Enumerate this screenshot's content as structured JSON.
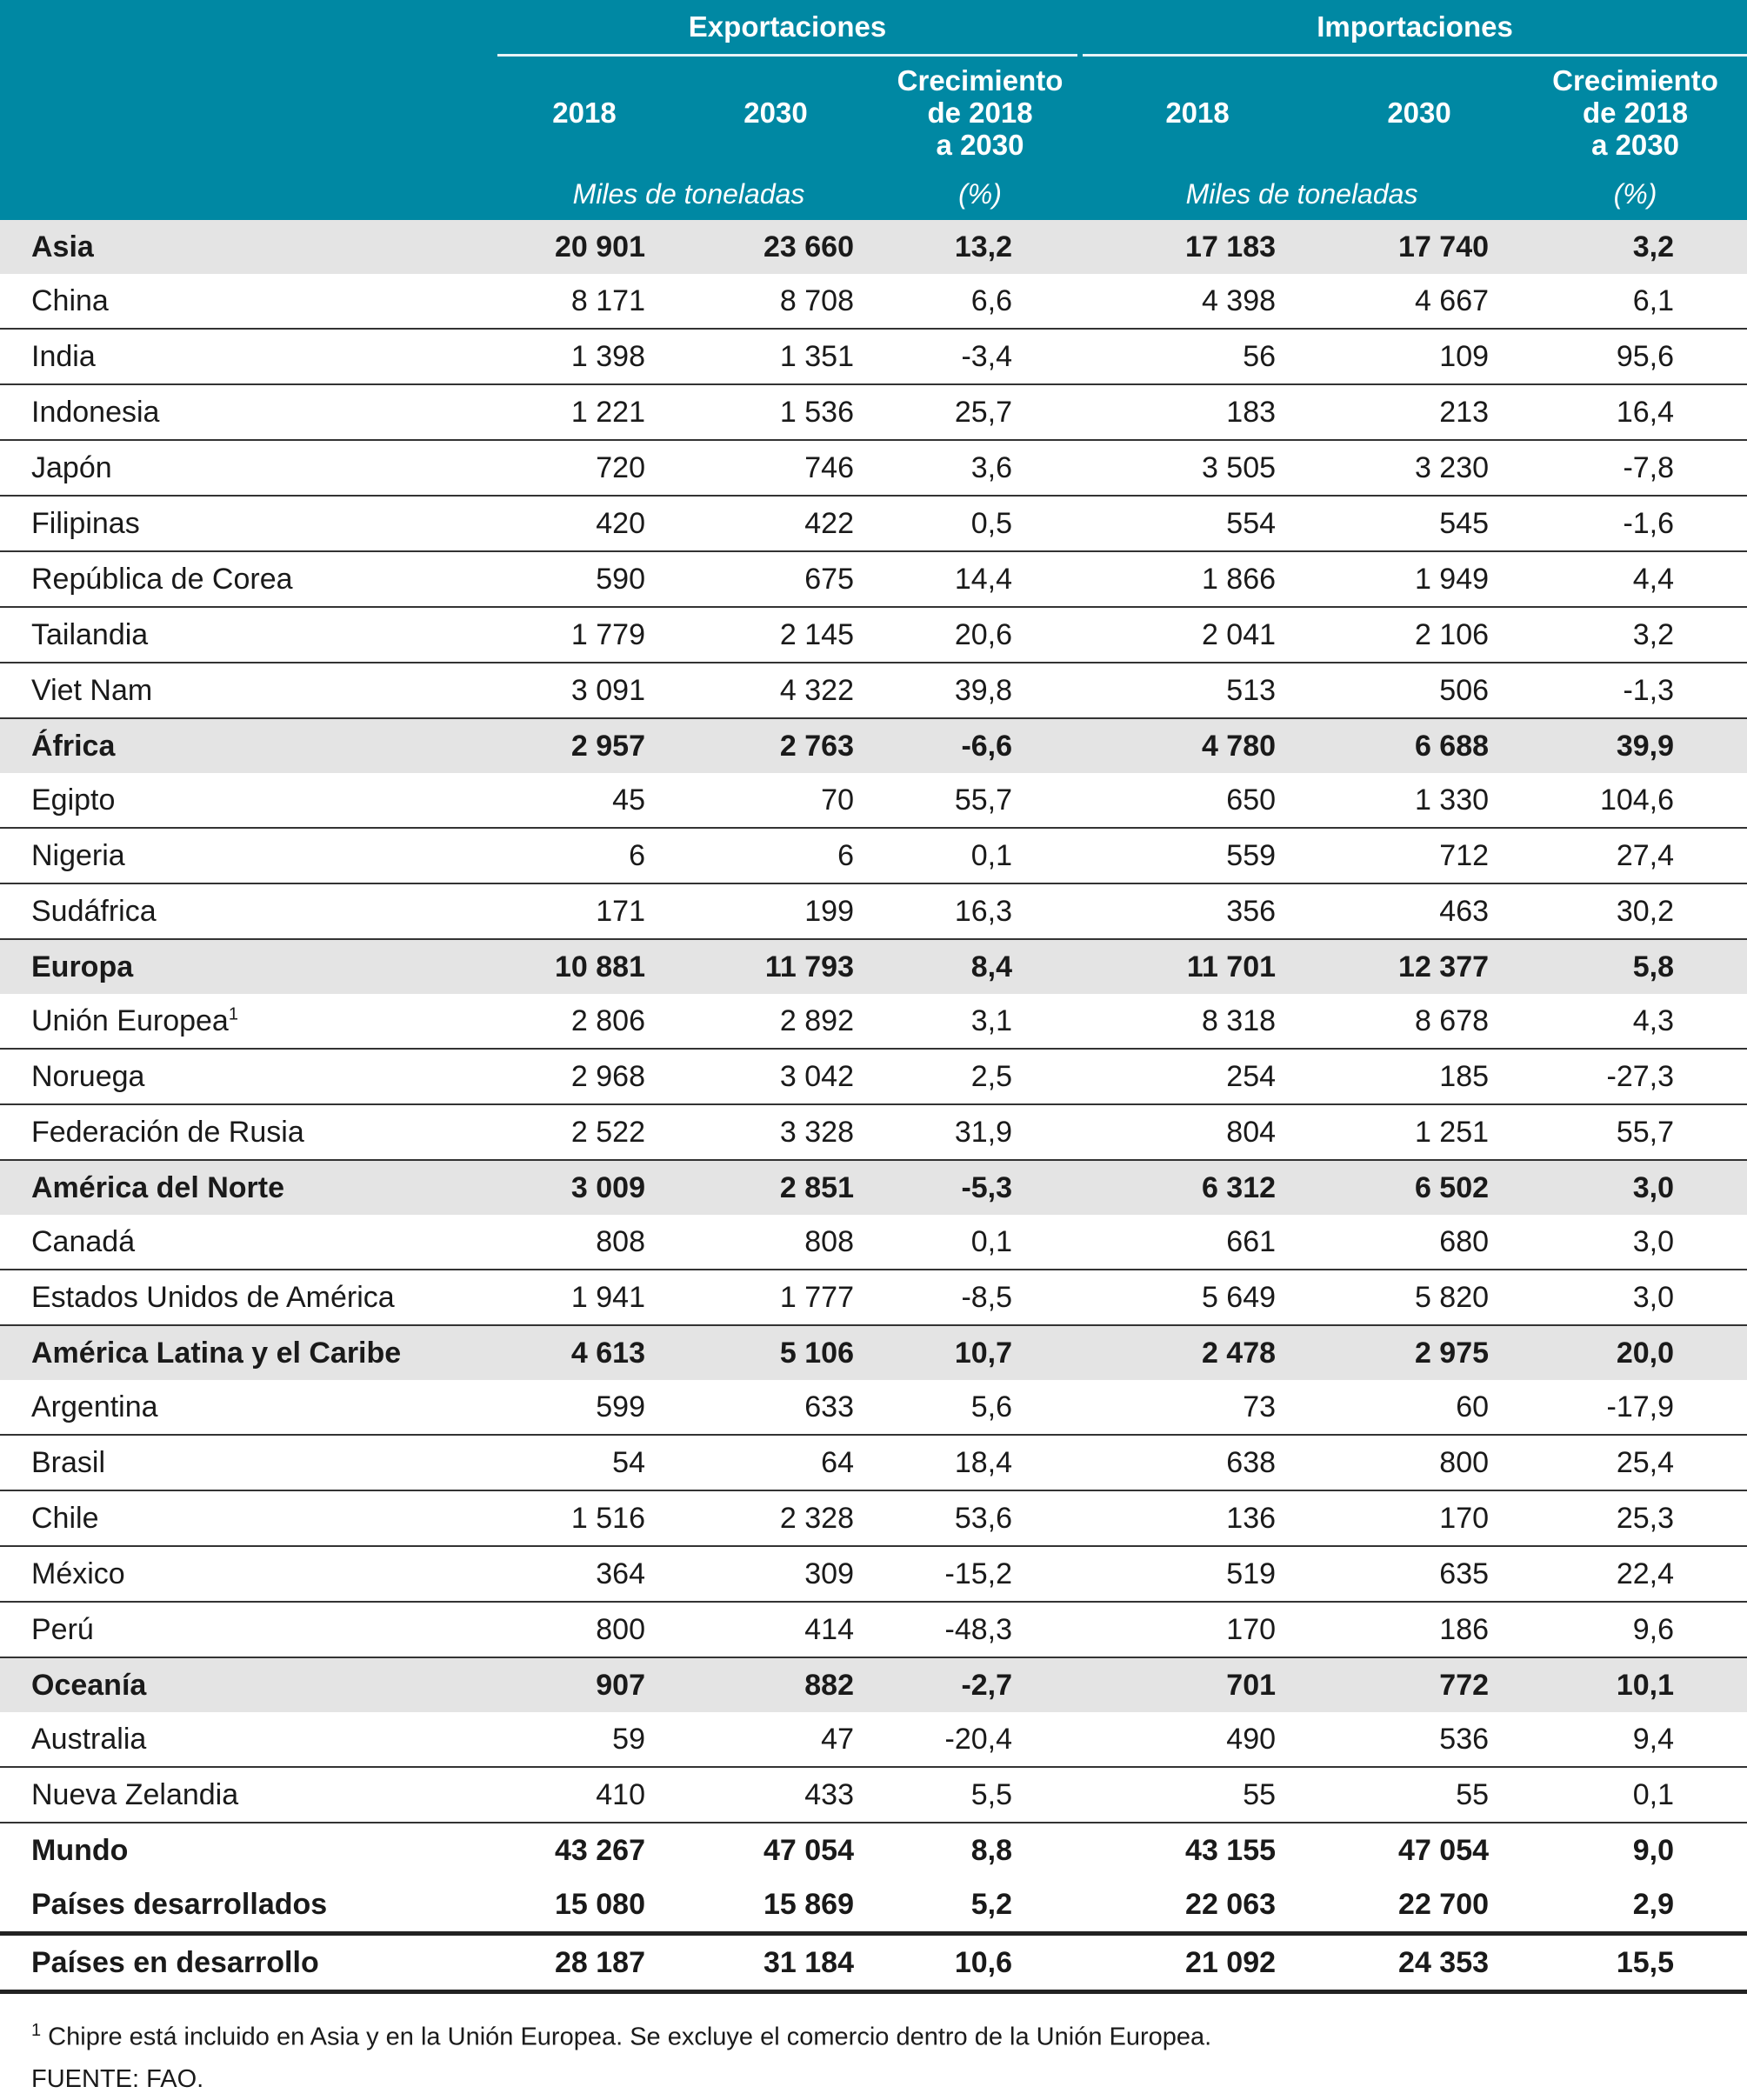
{
  "header": {
    "exports": "Exportaciones",
    "imports": "Importaciones",
    "y2018": "2018",
    "y2030": "2030",
    "growth_l1": "Crecimiento",
    "growth_l2": "de 2018",
    "growth_l3": "a 2030",
    "unit_tonnes": "Miles de toneladas",
    "unit_pct": "(%)"
  },
  "rows": [
    {
      "name": "Asia",
      "region": true,
      "v": [
        "20 901",
        "23 660",
        "13,2",
        "17 183",
        "17 740",
        "3,2"
      ]
    },
    {
      "name": "China",
      "v": [
        "8 171",
        "8 708",
        "6,6",
        "4 398",
        "4 667",
        "6,1"
      ]
    },
    {
      "name": "India",
      "v": [
        "1 398",
        "1 351",
        "-3,4",
        "56",
        "109",
        "95,6"
      ]
    },
    {
      "name": "Indonesia",
      "v": [
        "1 221",
        "1 536",
        "25,7",
        "183",
        "213",
        "16,4"
      ]
    },
    {
      "name": "Japón",
      "v": [
        "720",
        "746",
        "3,6",
        "3 505",
        "3 230",
        "-7,8"
      ]
    },
    {
      "name": "Filipinas",
      "v": [
        "420",
        "422",
        "0,5",
        "554",
        "545",
        "-1,6"
      ]
    },
    {
      "name": "República de Corea",
      "v": [
        "590",
        "675",
        "14,4",
        "1 866",
        "1 949",
        "4,4"
      ]
    },
    {
      "name": "Tailandia",
      "v": [
        "1 779",
        "2 145",
        "20,6",
        "2 041",
        "2 106",
        "3,2"
      ]
    },
    {
      "name": "Viet Nam",
      "v": [
        "3 091",
        "4 322",
        "39,8",
        "513",
        "506",
        "-1,3"
      ]
    },
    {
      "name": "África",
      "region": true,
      "v": [
        "2 957",
        "2 763",
        "-6,6",
        "4 780",
        "6 688",
        "39,9"
      ]
    },
    {
      "name": "Egipto",
      "v": [
        "45",
        "70",
        "55,7",
        "650",
        "1 330",
        "104,6"
      ]
    },
    {
      "name": "Nigeria",
      "v": [
        "6",
        "6",
        "0,1",
        "559",
        "712",
        "27,4"
      ]
    },
    {
      "name": "Sudáfrica",
      "v": [
        "171",
        "199",
        "16,3",
        "356",
        "463",
        "30,2"
      ]
    },
    {
      "name": "Europa",
      "region": true,
      "v": [
        "10 881",
        "11 793",
        "8,4",
        "11 701",
        "12 377",
        "5,8"
      ]
    },
    {
      "name": "Unión Europea",
      "sup": "1",
      "v": [
        "2 806",
        "2 892",
        "3,1",
        "8 318",
        "8 678",
        "4,3"
      ]
    },
    {
      "name": "Noruega",
      "v": [
        "2 968",
        "3 042",
        "2,5",
        "254",
        "185",
        "-27,3"
      ]
    },
    {
      "name": "Federación de Rusia",
      "v": [
        "2 522",
        "3 328",
        "31,9",
        "804",
        "1 251",
        "55,7"
      ]
    },
    {
      "name": "América del Norte",
      "region": true,
      "v": [
        "3 009",
        "2 851",
        "-5,3",
        "6 312",
        "6 502",
        "3,0"
      ]
    },
    {
      "name": "Canadá",
      "v": [
        "808",
        "808",
        "0,1",
        "661",
        "680",
        "3,0"
      ]
    },
    {
      "name": "Estados Unidos de América",
      "v": [
        "1 941",
        "1 777",
        "-8,5",
        "5 649",
        "5 820",
        "3,0"
      ]
    },
    {
      "name": "América Latina y el Caribe",
      "region": true,
      "v": [
        "4 613",
        "5 106",
        "10,7",
        "2 478",
        "2 975",
        "20,0"
      ]
    },
    {
      "name": "Argentina",
      "v": [
        "599",
        "633",
        "5,6",
        "73",
        "60",
        "-17,9"
      ]
    },
    {
      "name": "Brasil",
      "v": [
        "54",
        "64",
        "18,4",
        "638",
        "800",
        "25,4"
      ]
    },
    {
      "name": "Chile",
      "v": [
        "1 516",
        "2 328",
        "53,6",
        "136",
        "170",
        "25,3"
      ]
    },
    {
      "name": "México",
      "v": [
        "364",
        "309",
        "-15,2",
        "519",
        "635",
        "22,4"
      ]
    },
    {
      "name": "Perú",
      "v": [
        "800",
        "414",
        "-48,3",
        "170",
        "186",
        "9,6"
      ]
    },
    {
      "name": "Oceanía",
      "region": true,
      "v": [
        "907",
        "882",
        "-2,7",
        "701",
        "772",
        "10,1"
      ]
    },
    {
      "name": "Australia",
      "v": [
        "59",
        "47",
        "-20,4",
        "490",
        "536",
        "9,4"
      ]
    },
    {
      "name": "Nueva Zelandia",
      "v": [
        "410",
        "433",
        "5,5",
        "55",
        "55",
        "0,1"
      ]
    },
    {
      "name": "Mundo",
      "total": true,
      "v": [
        "43 267",
        "47 054",
        "8,8",
        "43 155",
        "47 054",
        "9,0"
      ]
    },
    {
      "name": "Países desarrollados",
      "total": true,
      "thick": true,
      "v": [
        "15 080",
        "15 869",
        "5,2",
        "22 063",
        "22 700",
        "2,9"
      ]
    },
    {
      "name": "Países en desarrollo",
      "total": true,
      "thick": true,
      "v": [
        "28 187",
        "31 184",
        "10,6",
        "21 092",
        "24 353",
        "15,5"
      ]
    }
  ],
  "notes": {
    "footnote_mark": "1",
    "footnote": " Chipre está incluido en Asia y en la Unión Europea. Se excluye el comercio dentro de la Unión Europea.",
    "source": "FUENTE: FAO."
  },
  "colors": {
    "header": "#0088a3",
    "region_row": "#e4e4e4"
  }
}
